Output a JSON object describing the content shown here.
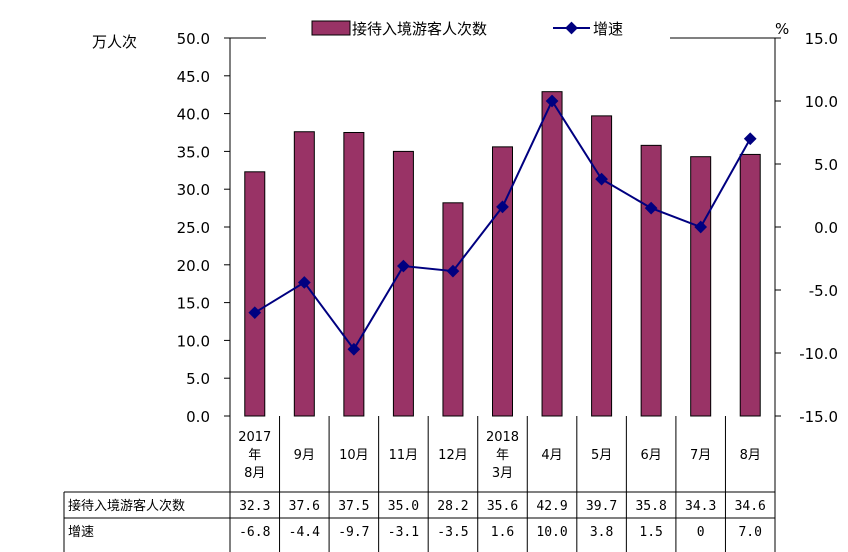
{
  "chart_data": {
    "type": "bar",
    "categories": [
      [
        "2017",
        "年",
        "8月"
      ],
      [
        "9月"
      ],
      [
        "10月"
      ],
      [
        "11月"
      ],
      [
        "12月"
      ],
      [
        "2018",
        "年",
        "3月"
      ],
      [
        "4月"
      ],
      [
        "5月"
      ],
      [
        "6月"
      ],
      [
        "7月"
      ],
      [
        "8月"
      ]
    ],
    "series": [
      {
        "name": "接待入境游客人次数",
        "type": "bar",
        "axis": "left",
        "color": "#993366",
        "values": [
          32.3,
          37.6,
          37.5,
          35.0,
          28.2,
          35.6,
          42.9,
          39.7,
          35.8,
          34.3,
          34.6
        ],
        "labels": [
          "32.3",
          "37.6",
          "37.5",
          "35.0",
          "28.2",
          "35.6",
          "42.9",
          "39.7",
          "35.8",
          "34.3",
          "34.6"
        ]
      },
      {
        "name": "增速",
        "type": "line",
        "axis": "right",
        "color": "#000080",
        "values": [
          -6.8,
          -4.4,
          -9.7,
          -3.1,
          -3.5,
          1.6,
          10.0,
          3.8,
          1.5,
          0,
          7.0
        ],
        "labels": [
          "-6.8",
          "-4.4",
          "-9.7",
          "-3.1",
          "-3.5",
          "1.6",
          "10.0",
          "3.8",
          "1.5",
          "0",
          "7.0"
        ]
      }
    ],
    "ylabel_left": "万人次",
    "ylabel_right": "%",
    "ylim_left": [
      0,
      50
    ],
    "ylim_right": [
      -15,
      15
    ],
    "yticks_left": [
      "0.0",
      "5.0",
      "10.0",
      "15.0",
      "20.0",
      "25.0",
      "30.0",
      "35.0",
      "40.0",
      "45.0",
      "50.0"
    ],
    "yticks_right": [
      "-15.0",
      "-10.0",
      "-5.0",
      "0.0",
      "5.0",
      "10.0",
      "15.0"
    ],
    "legend_position": "top",
    "grid": false,
    "table_row_labels": [
      "接待入境游客人次数",
      "增速"
    ]
  }
}
